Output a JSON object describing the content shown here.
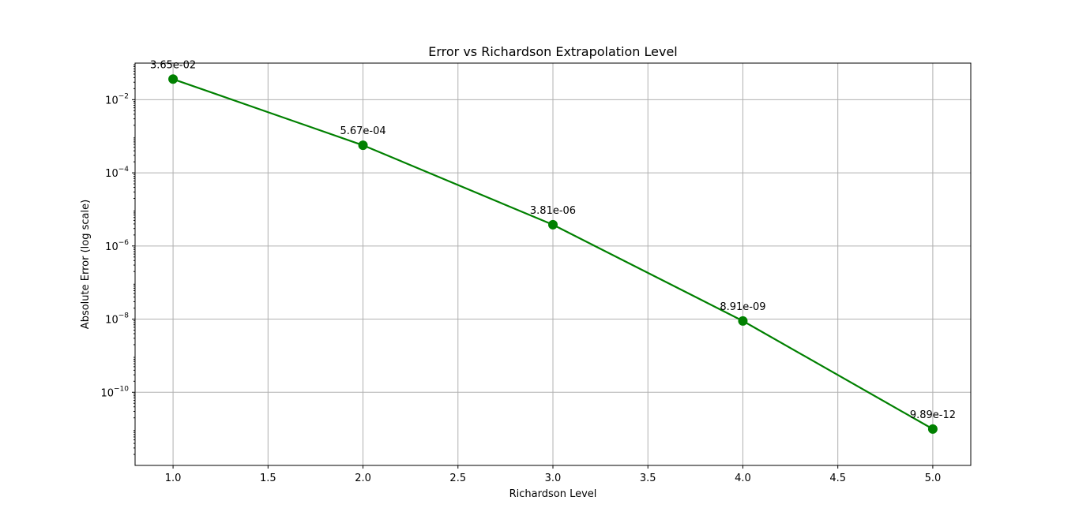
{
  "chart_data": {
    "type": "line",
    "title": "Error vs Richardson Extrapolation Level",
    "xlabel": "Richardson Level",
    "ylabel": "Absolute Error (log scale)",
    "x": [
      1,
      2,
      3,
      4,
      5
    ],
    "series": [
      {
        "values": [
          0.0365,
          0.000567,
          3.81e-06,
          8.91e-09,
          9.89e-12
        ],
        "labels": [
          "3.65e-02",
          "5.67e-04",
          "3.81e-06",
          "8.91e-09",
          "9.89e-12"
        ],
        "color": "#008000",
        "marker": "circle"
      }
    ],
    "xlim": [
      0.8,
      5.2
    ],
    "ylim": [
      1e-12,
      0.1
    ],
    "yscale": "log",
    "xticks": [
      1.0,
      1.5,
      2.0,
      2.5,
      3.0,
      3.5,
      4.0,
      4.5,
      5.0
    ],
    "xtick_labels": [
      "1.0",
      "1.5",
      "2.0",
      "2.5",
      "3.0",
      "3.5",
      "4.0",
      "4.5",
      "5.0"
    ],
    "yticks": [
      0.01,
      0.0001,
      1e-06,
      1e-08,
      1e-10
    ],
    "ytick_labels": [
      {
        "base": "10",
        "exp": "−2"
      },
      {
        "base": "10",
        "exp": "−4"
      },
      {
        "base": "10",
        "exp": "−6"
      },
      {
        "base": "10",
        "exp": "−8"
      },
      {
        "base": "10",
        "exp": "−10"
      }
    ],
    "grid": true,
    "legend": "none"
  }
}
